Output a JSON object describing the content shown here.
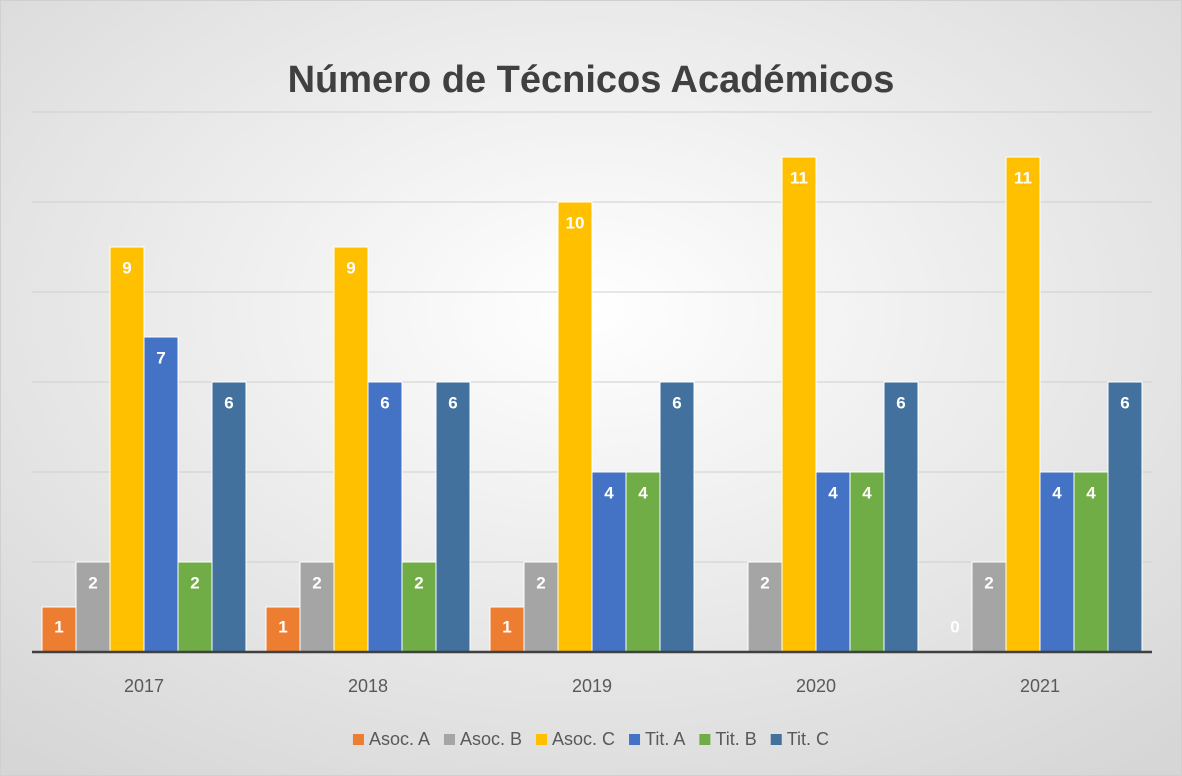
{
  "chart_data": {
    "type": "bar",
    "title": "Número de Técnicos Académicos",
    "categories": [
      "2017",
      "2018",
      "2019",
      "2020",
      "2021"
    ],
    "series": [
      {
        "name": "Asoc. A",
        "color": "#ED7D31",
        "values": [
          1,
          1,
          1,
          null,
          0
        ]
      },
      {
        "name": "Asoc. B",
        "color": "#A5A5A5",
        "values": [
          2,
          2,
          2,
          2,
          2
        ]
      },
      {
        "name": "Asoc. C",
        "color": "#FFC000",
        "values": [
          9,
          9,
          10,
          11,
          11
        ]
      },
      {
        "name": "Tit. A",
        "color": "#4472C4",
        "values": [
          7,
          6,
          4,
          4,
          4
        ]
      },
      {
        "name": "Tit. B",
        "color": "#70AD47",
        "values": [
          2,
          2,
          4,
          4,
          4
        ]
      },
      {
        "name": "Tit. C",
        "color": "#41719C",
        "values": [
          6,
          6,
          6,
          6,
          6
        ]
      }
    ],
    "ylim": [
      0,
      12
    ],
    "yticks": [
      0,
      2,
      4,
      6,
      8,
      10,
      12
    ],
    "grid": true,
    "legend": "bottom"
  }
}
